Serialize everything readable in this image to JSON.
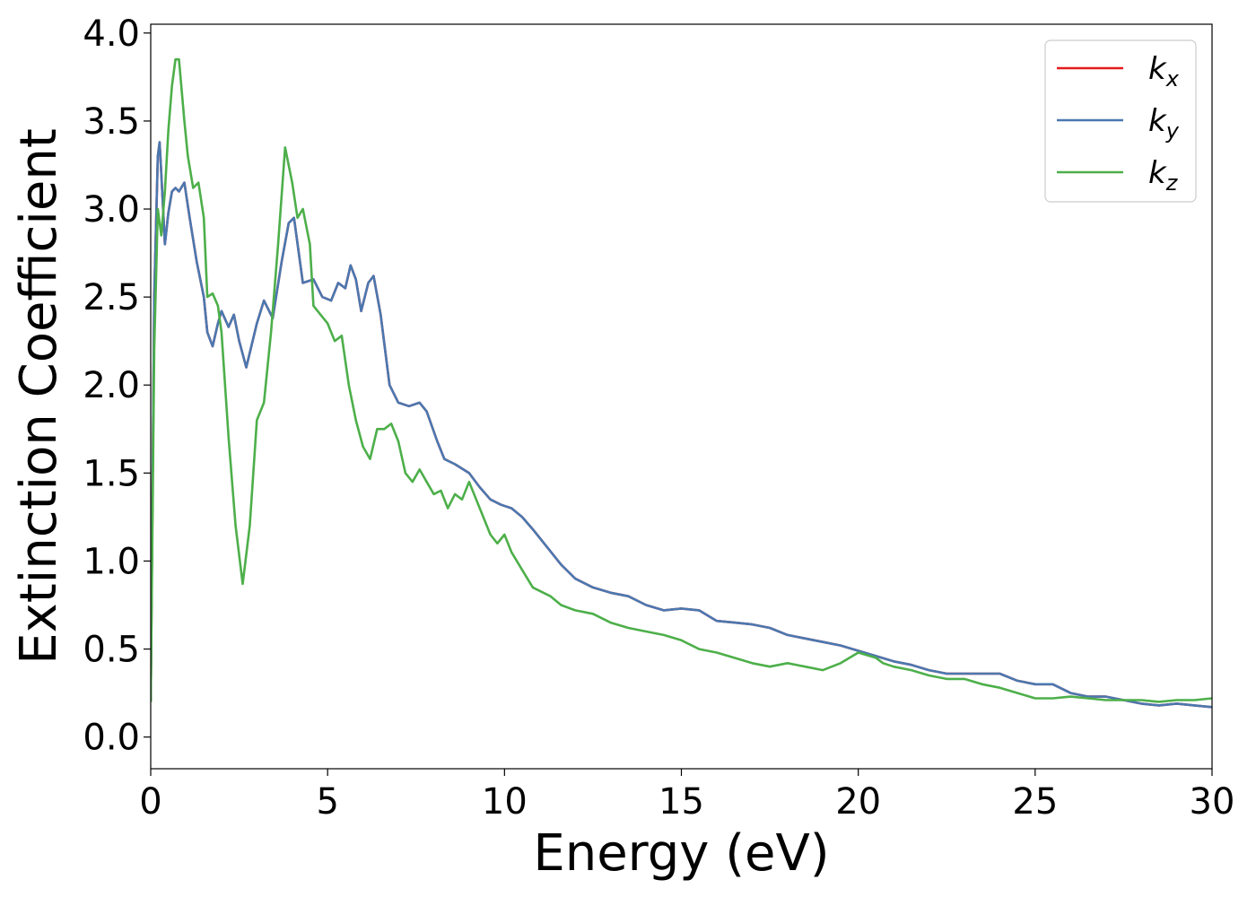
{
  "chart_data": {
    "type": "line",
    "title": "",
    "xlabel": "Energy (eV)",
    "ylabel": "Extinction Coefficient",
    "xlim": [
      0,
      30
    ],
    "ylim": [
      -0.18,
      4.05
    ],
    "xticks": [
      0,
      5,
      10,
      15,
      20,
      25,
      30
    ],
    "xtick_labels": [
      "0",
      "5",
      "10",
      "15",
      "20",
      "25",
      "30"
    ],
    "yticks": [
      0.0,
      0.5,
      1.0,
      1.5,
      2.0,
      2.5,
      3.0,
      3.5,
      4.0
    ],
    "ytick_labels": [
      "0.0",
      "0.5",
      "1.0",
      "1.5",
      "2.0",
      "2.5",
      "3.0",
      "3.5",
      "4.0"
    ],
    "grid": false,
    "legend_position": "top-right",
    "series": [
      {
        "name": "k_x",
        "label_base": "k",
        "label_sub": "x",
        "color": "#e41a1c",
        "x": [
          0.0,
          0.1,
          0.2,
          0.25,
          0.3,
          0.4,
          0.5,
          0.6,
          0.7,
          0.8,
          0.95,
          1.1,
          1.3,
          1.5,
          1.6,
          1.75,
          1.9,
          2.0,
          2.2,
          2.35,
          2.5,
          2.7,
          3.0,
          3.2,
          3.45,
          3.7,
          3.9,
          4.05,
          4.3,
          4.6,
          4.85,
          5.1,
          5.3,
          5.5,
          5.65,
          5.8,
          5.95,
          6.15,
          6.3,
          6.5,
          6.75,
          7.0,
          7.3,
          7.6,
          7.8,
          8.1,
          8.3,
          8.6,
          9.0,
          9.3,
          9.6,
          9.9,
          10.2,
          10.5,
          10.8,
          11.2,
          11.6,
          12.0,
          12.5,
          13.0,
          13.5,
          14.0,
          14.5,
          15.0,
          15.5,
          16.0,
          16.5,
          17.0,
          17.5,
          18.0,
          18.5,
          19.0,
          19.5,
          20.0,
          20.5,
          21.0,
          21.5,
          22.0,
          22.5,
          23.0,
          23.5,
          24.0,
          24.5,
          25.0,
          25.5,
          26.0,
          26.5,
          27.0,
          27.5,
          28.0,
          28.5,
          29.0,
          29.5,
          30.0
        ],
        "values": [
          0.2,
          2.5,
          3.3,
          3.38,
          3.2,
          2.8,
          2.98,
          3.1,
          3.12,
          3.1,
          3.15,
          2.95,
          2.7,
          2.5,
          2.3,
          2.22,
          2.35,
          2.42,
          2.33,
          2.4,
          2.25,
          2.1,
          2.35,
          2.48,
          2.38,
          2.7,
          2.92,
          2.95,
          2.58,
          2.6,
          2.5,
          2.48,
          2.58,
          2.55,
          2.68,
          2.6,
          2.42,
          2.58,
          2.62,
          2.4,
          2.0,
          1.9,
          1.88,
          1.9,
          1.85,
          1.68,
          1.58,
          1.55,
          1.5,
          1.42,
          1.35,
          1.32,
          1.3,
          1.25,
          1.18,
          1.08,
          0.98,
          0.9,
          0.85,
          0.82,
          0.8,
          0.75,
          0.72,
          0.73,
          0.72,
          0.66,
          0.65,
          0.64,
          0.62,
          0.58,
          0.56,
          0.54,
          0.52,
          0.49,
          0.46,
          0.43,
          0.41,
          0.38,
          0.36,
          0.36,
          0.36,
          0.36,
          0.32,
          0.3,
          0.3,
          0.25,
          0.23,
          0.23,
          0.21,
          0.19,
          0.18,
          0.19,
          0.18,
          0.17
        ]
      },
      {
        "name": "k_y",
        "label_base": "k",
        "label_sub": "y",
        "color": "#4a78b0",
        "x": [
          0.0,
          0.1,
          0.2,
          0.25,
          0.3,
          0.4,
          0.5,
          0.6,
          0.7,
          0.8,
          0.95,
          1.1,
          1.3,
          1.5,
          1.6,
          1.75,
          1.9,
          2.0,
          2.2,
          2.35,
          2.5,
          2.7,
          3.0,
          3.2,
          3.45,
          3.7,
          3.9,
          4.05,
          4.3,
          4.6,
          4.85,
          5.1,
          5.3,
          5.5,
          5.65,
          5.8,
          5.95,
          6.15,
          6.3,
          6.5,
          6.75,
          7.0,
          7.3,
          7.6,
          7.8,
          8.1,
          8.3,
          8.6,
          9.0,
          9.3,
          9.6,
          9.9,
          10.2,
          10.5,
          10.8,
          11.2,
          11.6,
          12.0,
          12.5,
          13.0,
          13.5,
          14.0,
          14.5,
          15.0,
          15.5,
          16.0,
          16.5,
          17.0,
          17.5,
          18.0,
          18.5,
          19.0,
          19.5,
          20.0,
          20.5,
          21.0,
          21.5,
          22.0,
          22.5,
          23.0,
          23.5,
          24.0,
          24.5,
          25.0,
          25.5,
          26.0,
          26.5,
          27.0,
          27.5,
          28.0,
          28.5,
          29.0,
          29.5,
          30.0
        ],
        "values": [
          0.2,
          2.5,
          3.3,
          3.38,
          3.2,
          2.8,
          2.98,
          3.1,
          3.12,
          3.1,
          3.15,
          2.95,
          2.7,
          2.5,
          2.3,
          2.22,
          2.35,
          2.42,
          2.33,
          2.4,
          2.25,
          2.1,
          2.35,
          2.48,
          2.38,
          2.7,
          2.92,
          2.95,
          2.58,
          2.6,
          2.5,
          2.48,
          2.58,
          2.55,
          2.68,
          2.6,
          2.42,
          2.58,
          2.62,
          2.4,
          2.0,
          1.9,
          1.88,
          1.9,
          1.85,
          1.68,
          1.58,
          1.55,
          1.5,
          1.42,
          1.35,
          1.32,
          1.3,
          1.25,
          1.18,
          1.08,
          0.98,
          0.9,
          0.85,
          0.82,
          0.8,
          0.75,
          0.72,
          0.73,
          0.72,
          0.66,
          0.65,
          0.64,
          0.62,
          0.58,
          0.56,
          0.54,
          0.52,
          0.49,
          0.46,
          0.43,
          0.41,
          0.38,
          0.36,
          0.36,
          0.36,
          0.36,
          0.32,
          0.3,
          0.3,
          0.25,
          0.23,
          0.23,
          0.21,
          0.19,
          0.18,
          0.19,
          0.18,
          0.17
        ]
      },
      {
        "name": "k_z",
        "label_base": "k",
        "label_sub": "z",
        "color": "#4daf4a",
        "x": [
          0.0,
          0.1,
          0.2,
          0.3,
          0.4,
          0.5,
          0.6,
          0.7,
          0.8,
          0.95,
          1.05,
          1.2,
          1.35,
          1.5,
          1.6,
          1.75,
          1.9,
          2.0,
          2.2,
          2.4,
          2.6,
          2.8,
          3.0,
          3.2,
          3.4,
          3.6,
          3.8,
          4.0,
          4.15,
          4.3,
          4.5,
          4.6,
          4.8,
          5.0,
          5.2,
          5.4,
          5.6,
          5.8,
          6.0,
          6.2,
          6.4,
          6.6,
          6.8,
          7.0,
          7.2,
          7.4,
          7.6,
          7.8,
          8.0,
          8.2,
          8.4,
          8.6,
          8.8,
          9.0,
          9.2,
          9.4,
          9.6,
          9.8,
          10.0,
          10.2,
          10.5,
          10.8,
          11.1,
          11.3,
          11.6,
          12.0,
          12.5,
          13.0,
          13.5,
          14.0,
          14.5,
          15.0,
          15.5,
          16.0,
          16.5,
          17.0,
          17.5,
          18.0,
          18.5,
          19.0,
          19.5,
          20.0,
          20.5,
          20.7,
          21.0,
          21.5,
          22.0,
          22.5,
          23.0,
          23.5,
          24.0,
          24.5,
          25.0,
          25.5,
          26.0,
          26.5,
          27.0,
          27.5,
          28.0,
          28.5,
          29.0,
          29.5,
          30.0
        ],
        "values": [
          0.2,
          2.2,
          3.0,
          2.85,
          3.1,
          3.45,
          3.7,
          3.85,
          3.85,
          3.5,
          3.3,
          3.12,
          3.15,
          2.95,
          2.5,
          2.52,
          2.45,
          2.3,
          1.7,
          1.2,
          0.87,
          1.2,
          1.8,
          1.9,
          2.3,
          2.8,
          3.35,
          3.15,
          2.95,
          3.0,
          2.8,
          2.45,
          2.4,
          2.35,
          2.25,
          2.28,
          2.0,
          1.8,
          1.65,
          1.58,
          1.75,
          1.75,
          1.78,
          1.68,
          1.5,
          1.45,
          1.52,
          1.45,
          1.38,
          1.4,
          1.3,
          1.38,
          1.35,
          1.45,
          1.35,
          1.25,
          1.15,
          1.1,
          1.15,
          1.05,
          0.95,
          0.85,
          0.82,
          0.8,
          0.75,
          0.72,
          0.7,
          0.65,
          0.62,
          0.6,
          0.58,
          0.55,
          0.5,
          0.48,
          0.45,
          0.42,
          0.4,
          0.42,
          0.4,
          0.38,
          0.42,
          0.48,
          0.45,
          0.42,
          0.4,
          0.38,
          0.35,
          0.33,
          0.33,
          0.3,
          0.28,
          0.25,
          0.22,
          0.22,
          0.23,
          0.22,
          0.21,
          0.21,
          0.21,
          0.2,
          0.21,
          0.21,
          0.22
        ]
      }
    ]
  }
}
